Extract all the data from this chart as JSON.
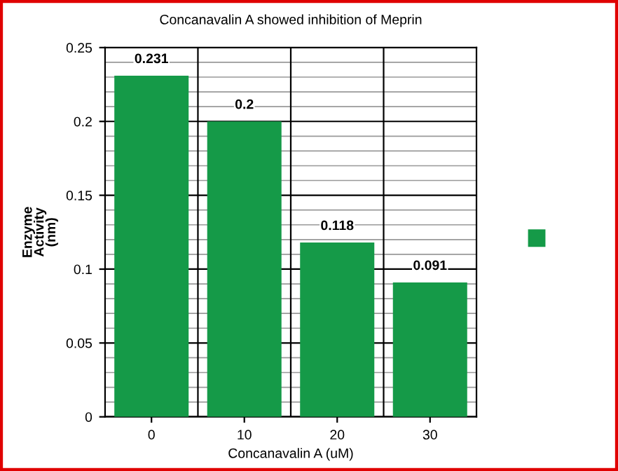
{
  "chart_data": {
    "type": "bar",
    "title": "Concanavalin A showed inhibition of Meprin",
    "xlabel": "Concanavalin A (uM)",
    "ylabel": "Enzyme\nActivity\n(nm)",
    "categories": [
      "0",
      "10",
      "20",
      "30"
    ],
    "series": [
      {
        "color": "#159a48",
        "values": [
          0.231,
          0.2,
          0.118,
          0.091
        ]
      }
    ],
    "data_labels": true,
    "ylim": [
      0,
      0.25
    ],
    "yticks": [
      0,
      0.05,
      0.1,
      0.15,
      0.2,
      0.25
    ],
    "grid": true
  }
}
